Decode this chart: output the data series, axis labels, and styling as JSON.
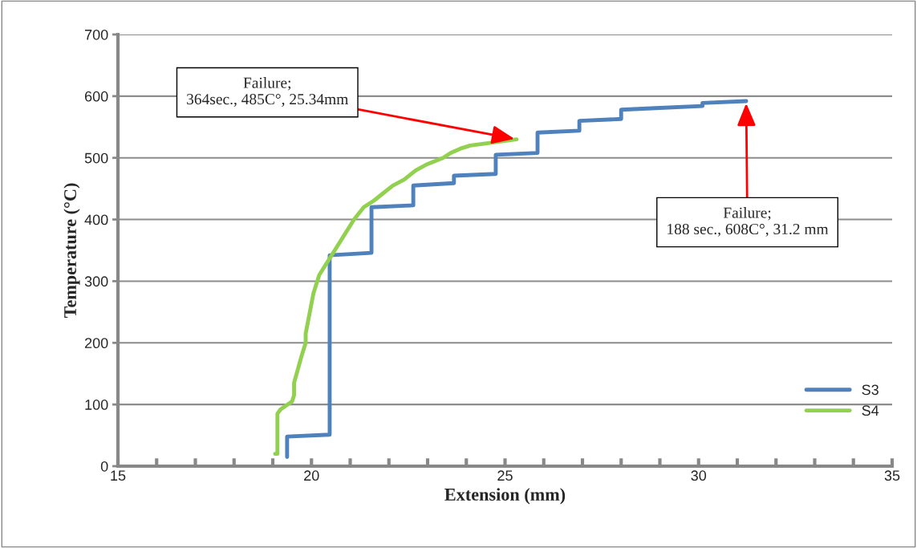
{
  "chart_data": {
    "type": "line",
    "xlabel": "Extension (mm)",
    "ylabel": "Temperature (°C)",
    "xlim": [
      15,
      35
    ],
    "ylim": [
      0,
      700
    ],
    "xticks": [
      15,
      {
        "value": 16,
        "label": null
      },
      {
        "value": 17,
        "label": null
      },
      {
        "value": 18,
        "label": null
      },
      {
        "value": 19,
        "label": null
      },
      20,
      {
        "value": 21,
        "label": null
      },
      {
        "value": 22,
        "label": null
      },
      {
        "value": 23,
        "label": null
      },
      {
        "value": 24,
        "label": null
      },
      25,
      {
        "value": 26,
        "label": null
      },
      {
        "value": 27,
        "label": null
      },
      {
        "value": 28,
        "label": null
      },
      {
        "value": 29,
        "label": null
      },
      30,
      {
        "value": 31,
        "label": null
      },
      {
        "value": 32,
        "label": null
      },
      {
        "value": 33,
        "label": null
      },
      {
        "value": 34,
        "label": null
      },
      35
    ],
    "yticks": [
      0,
      100,
      200,
      300,
      400,
      500,
      600,
      700
    ],
    "grid": "y",
    "legend": "right",
    "marker": "none",
    "line_style": "solid",
    "series": [
      {
        "name": "S3",
        "color": "#4f81bd",
        "x": [
          19.37,
          19.37,
          20.47,
          20.47,
          21.55,
          21.55,
          22.63,
          22.63,
          23.68,
          23.68,
          24.76,
          24.76,
          25.84,
          25.84,
          26.92,
          26.92,
          28.0,
          28.0,
          29.0,
          30.1,
          30.1,
          31.23
        ],
        "values": [
          15,
          48,
          51,
          342,
          346,
          420,
          423,
          455,
          459,
          471,
          474,
          505,
          508,
          541,
          544,
          560,
          563,
          578,
          581,
          584,
          589,
          592
        ]
      },
      {
        "name": "S4",
        "color": "#92d050",
        "x": [
          19.06,
          19.12,
          19.12,
          19.2,
          19.5,
          19.55,
          19.55,
          19.75,
          19.85,
          19.85,
          20.05,
          20.2,
          20.5,
          20.8,
          21.1,
          21.35,
          21.6,
          21.9,
          22.1,
          22.4,
          22.7,
          23.0,
          23.4,
          23.6,
          23.85,
          24.1,
          25.3
        ],
        "values": [
          20,
          20,
          85,
          92,
          105,
          115,
          135,
          180,
          200,
          215,
          280,
          310,
          340,
          370,
          400,
          420,
          430,
          445,
          455,
          465,
          480,
          490,
          500,
          508,
          515,
          520,
          530
        ]
      }
    ],
    "annotations": [
      {
        "text": "Failure;\n364sec., 485C°, 25.34mm",
        "x": 25.3,
        "y": 530
      },
      {
        "text": "Failure;\n188 sec., 608C°, 31.2 mm",
        "x": 31.23,
        "y": 592
      }
    ]
  }
}
